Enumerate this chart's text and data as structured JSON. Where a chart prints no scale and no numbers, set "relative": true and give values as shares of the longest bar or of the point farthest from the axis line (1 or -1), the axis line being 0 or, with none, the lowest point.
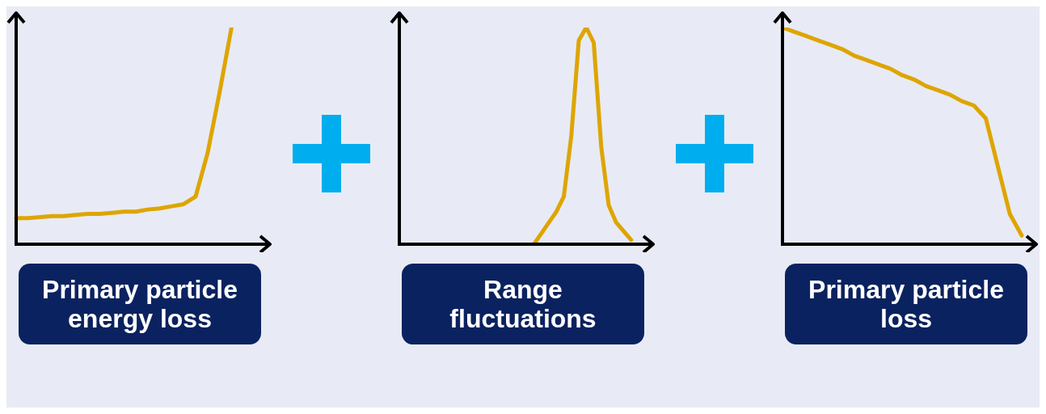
{
  "chart_data": [
    {
      "type": "line",
      "relative": true,
      "marker": "none",
      "xlabel": "Primary particle energy loss",
      "categories": [
        null,
        null,
        null,
        null,
        null,
        null,
        null,
        null,
        null,
        null,
        null,
        null,
        null,
        null,
        null,
        null,
        null,
        null,
        null,
        null,
        null
      ],
      "series": [
        {
          "color": "#dea500",
          "values": [
            0.12,
            0.12,
            0.125,
            0.13,
            0.13,
            0.135,
            0.14,
            0.14,
            0.145,
            0.15,
            0.15,
            0.16,
            0.165,
            0.175,
            0.185,
            0.22,
            0.42,
            0.7,
            1.0,
            null,
            null
          ]
        }
      ]
    },
    {
      "type": "line",
      "relative": true,
      "marker": "none",
      "xlabel": "Range fluctuations",
      "categories": [
        null,
        null,
        null,
        null,
        null,
        null,
        null,
        null,
        null,
        null,
        null,
        null,
        null,
        null,
        null,
        null,
        null,
        null,
        null,
        null,
        null,
        null,
        null,
        null,
        null,
        null,
        null,
        null,
        null,
        null,
        null,
        null,
        null
      ],
      "series": [
        {
          "color": "#dea500",
          "values": [
            null,
            null,
            null,
            null,
            null,
            null,
            null,
            null,
            null,
            null,
            null,
            null,
            null,
            null,
            null,
            null,
            null,
            null,
            0,
            0.05,
            0.1,
            0.15,
            0.22,
            0.5,
            0.94,
            1.0,
            0.93,
            0.45,
            0.18,
            0.1,
            0.06,
            0.02,
            null
          ]
        }
      ]
    },
    {
      "type": "line",
      "relative": true,
      "marker": "none",
      "xlabel": "Primary particle loss",
      "categories": [
        null,
        null,
        null,
        null,
        null,
        null,
        null,
        null,
        null,
        null,
        null,
        null,
        null,
        null,
        null,
        null,
        null,
        null,
        null,
        null,
        null
      ],
      "series": [
        {
          "color": "#dea500",
          "values": [
            1.0,
            0.98,
            0.96,
            0.94,
            0.92,
            0.9,
            0.87,
            0.85,
            0.83,
            0.81,
            0.78,
            0.76,
            0.73,
            0.71,
            0.69,
            0.66,
            0.64,
            0.58,
            0.36,
            0.14,
            0.04
          ]
        }
      ]
    }
  ]
}
